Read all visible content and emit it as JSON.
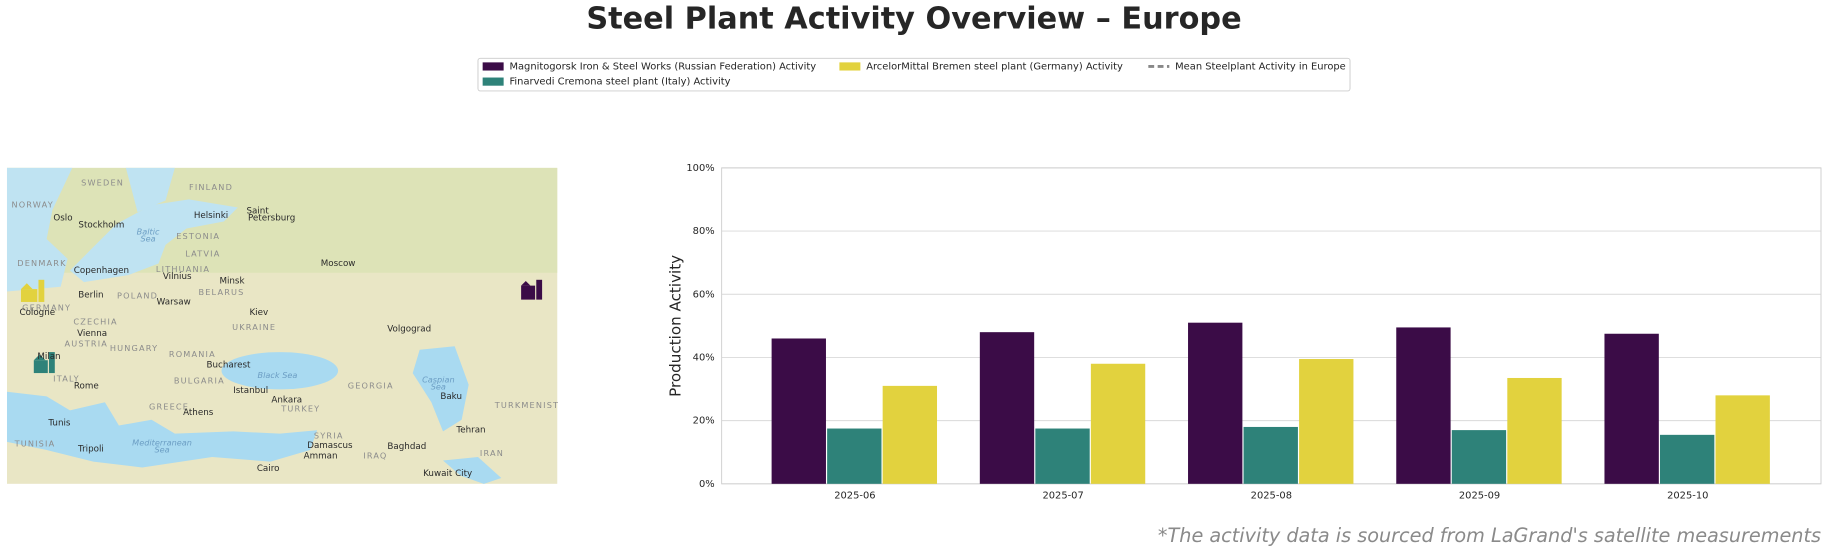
{
  "chart_data": {
    "type": "bar",
    "title": "Steel Plant Activity Overview – Europe",
    "y_label": "Production Activity",
    "note": "*The activity data is sourced from LaGrand's satellite measurements",
    "categories": [
      "2025-06",
      "2025-07",
      "2025-08",
      "2025-09",
      "2025-10"
    ],
    "series": [
      {
        "name": "Magnitogorsk Iron & Steel Works (Russian Federation) Activity",
        "color": "#3b0c47",
        "values": [
          46,
          48,
          51,
          49.5,
          47.5
        ]
      },
      {
        "name": "Finarvedi Cremona steel plant (Italy) Activity",
        "color": "#2e8279",
        "values": [
          17.5,
          17.5,
          18,
          17,
          15.5
        ]
      },
      {
        "name": "ArcelorMittal Bremen steel plant (Germany) Activity",
        "color": "#e2d23e",
        "values": [
          31,
          38,
          39.5,
          33.5,
          28
        ]
      },
      {
        "name": "Mean Steelplant Activity in Europe",
        "color": "#888888",
        "line": "dashed",
        "values": [
          null,
          null,
          null,
          null,
          null
        ]
      }
    ],
    "ylim": [
      0,
      100
    ],
    "yticks": [
      {
        "value": 0,
        "label": "0%"
      },
      {
        "value": 20,
        "label": "20%"
      },
      {
        "value": 40,
        "label": "40%"
      },
      {
        "value": 60,
        "label": "60%"
      },
      {
        "value": 80,
        "label": "80%"
      },
      {
        "value": 100,
        "label": "100%"
      }
    ],
    "grid": true
  },
  "map": {
    "labels": [
      "SWEDEN",
      "FINLAND",
      "NORWAY",
      "Oslo",
      "Stockholm",
      "Helsinki",
      "Saint",
      "Petersburg",
      "Baltic",
      "Sea",
      "ESTONIA",
      "LATVIA",
      "DENMARK",
      "LITHUANIA",
      "Copenhagen",
      "Vilnius",
      "Moscow",
      "Minsk",
      "BELARUS",
      "Berlin",
      "POLAND",
      "Warsaw",
      "GERMANY",
      "Cologne",
      "Kiev",
      "CZECHIA",
      "UKRAINE",
      "Volgograd",
      "Vienna",
      "AUSTRIA",
      "HUNGARY",
      "ROMANIA",
      "Milan",
      "Bucharest",
      "ITALY",
      "Rome",
      "BULGARIA",
      "Black Sea",
      "Istanbul",
      "GEORGIA",
      "Caspian",
      "Sea",
      "Baku",
      "Ankara",
      "TURKEY",
      "TURKMENIST",
      "GREECE",
      "Athens",
      "Tunis",
      "Tehran",
      "TUNISIA",
      "SYRIA",
      "Damascus",
      "Tripoli",
      "Mediterranean",
      "Sea",
      "Baghdad",
      "IRAQ",
      "Amman",
      "IRAN",
      "Cairo",
      "Kuwait City"
    ]
  }
}
